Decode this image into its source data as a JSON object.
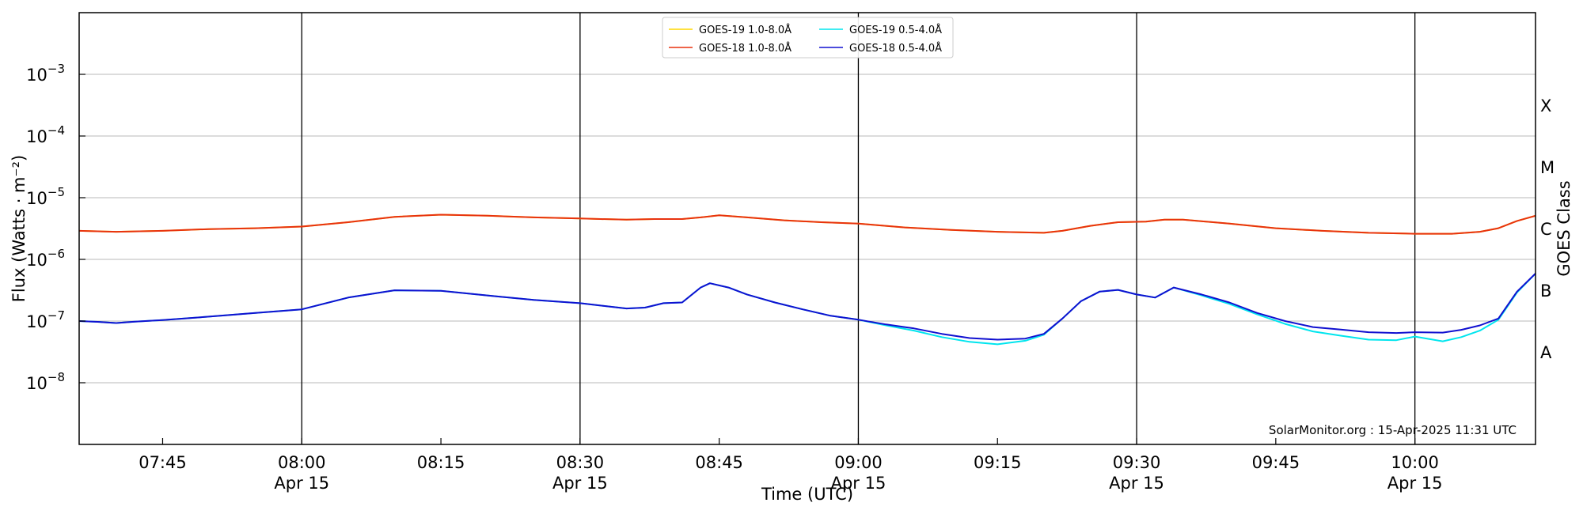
{
  "chart_data": {
    "type": "line",
    "xlabel": "Time (UTC)",
    "ylabel": "Flux (Watts · m⁻²)",
    "y2label": "GOES Class",
    "y_scale": "log",
    "ylim": [
      1e-09,
      0.01
    ],
    "xlim": [
      "07:36",
      "10:13"
    ],
    "grid": "horizontal major lines at decades",
    "legend_placement": "top-center",
    "x_ticks": [
      {
        "time": "07:45",
        "label": "07:45",
        "date": ""
      },
      {
        "time": "08:00",
        "label": "08:00",
        "date": "Apr 15"
      },
      {
        "time": "08:15",
        "label": "08:15",
        "date": ""
      },
      {
        "time": "08:30",
        "label": "08:30",
        "date": "Apr 15"
      },
      {
        "time": "08:45",
        "label": "08:45",
        "date": ""
      },
      {
        "time": "09:00",
        "label": "09:00",
        "date": "Apr 15"
      },
      {
        "time": "09:15",
        "label": "09:15",
        "date": ""
      },
      {
        "time": "09:30",
        "label": "09:30",
        "date": "Apr 15"
      },
      {
        "time": "09:45",
        "label": "09:45",
        "date": ""
      },
      {
        "time": "10:00",
        "label": "10:00",
        "date": "Apr 15"
      }
    ],
    "vertical_lines": [
      "08:00",
      "08:30",
      "09:00",
      "09:30",
      "10:00"
    ],
    "y_ticks": [
      {
        "value": 1e-08,
        "base": "10",
        "exp": "−8"
      },
      {
        "value": 1e-07,
        "base": "10",
        "exp": "−7"
      },
      {
        "value": 1e-06,
        "base": "10",
        "exp": "−6"
      },
      {
        "value": 1e-05,
        "base": "10",
        "exp": "−5"
      },
      {
        "value": 0.0001,
        "base": "10",
        "exp": "−4"
      },
      {
        "value": 0.001,
        "base": "10",
        "exp": "−3"
      }
    ],
    "goes_classes": [
      {
        "label": "A",
        "value": 3.16e-08
      },
      {
        "label": "B",
        "value": 3.16e-07
      },
      {
        "label": "C",
        "value": 3.16e-06
      },
      {
        "label": "M",
        "value": 3.16e-05
      },
      {
        "label": "X",
        "value": 0.000316
      }
    ],
    "credit": "SolarMonitor.org : 15-Apr-2025 11:31 UTC",
    "series": [
      {
        "name": "GOES-19 1.0-8.0Å",
        "color": "#ffd700",
        "x": [
          "07:36",
          "07:40",
          "07:45",
          "07:50",
          "07:55",
          "08:00",
          "08:05",
          "08:10",
          "08:15",
          "08:20",
          "08:25",
          "08:30",
          "08:35",
          "08:38",
          "08:41",
          "08:43",
          "08:45",
          "08:48",
          "08:52",
          "08:56",
          "09:00",
          "09:05",
          "09:10",
          "09:15",
          "09:20",
          "09:22",
          "09:25",
          "09:28",
          "09:31",
          "09:33",
          "09:35",
          "09:40",
          "09:45",
          "09:50",
          "09:55",
          "10:00",
          "10:04",
          "10:07",
          "10:09",
          "10:11",
          "10:13"
        ],
        "values": [
          2.9e-06,
          2.8e-06,
          2.9e-06,
          3.1e-06,
          3.2e-06,
          3.4e-06,
          4e-06,
          4.9e-06,
          5.3e-06,
          5.1e-06,
          4.8e-06,
          4.6e-06,
          4.4e-06,
          4.5e-06,
          4.5e-06,
          4.8e-06,
          5.2e-06,
          4.8e-06,
          4.3e-06,
          4e-06,
          3.8e-06,
          3.3e-06,
          3e-06,
          2.8e-06,
          2.7e-06,
          2.9e-06,
          3.5e-06,
          4e-06,
          4.1e-06,
          4.4e-06,
          4.4e-06,
          3.8e-06,
          3.2e-06,
          2.9e-06,
          2.7e-06,
          2.6e-06,
          2.6e-06,
          2.8e-06,
          3.2e-06,
          4.2e-06,
          5.1e-06
        ]
      },
      {
        "name": "GOES-18 1.0-8.0Å",
        "color": "#e8320f",
        "x": [
          "07:36",
          "07:40",
          "07:45",
          "07:50",
          "07:55",
          "08:00",
          "08:05",
          "08:10",
          "08:15",
          "08:20",
          "08:25",
          "08:30",
          "08:35",
          "08:38",
          "08:41",
          "08:43",
          "08:45",
          "08:48",
          "08:52",
          "08:56",
          "09:00",
          "09:05",
          "09:10",
          "09:15",
          "09:20",
          "09:22",
          "09:25",
          "09:28",
          "09:31",
          "09:33",
          "09:35",
          "09:40",
          "09:45",
          "09:50",
          "09:55",
          "10:00",
          "10:04",
          "10:07",
          "10:09",
          "10:11",
          "10:13"
        ],
        "values": [
          2.9e-06,
          2.8e-06,
          2.9e-06,
          3.1e-06,
          3.2e-06,
          3.4e-06,
          4e-06,
          4.9e-06,
          5.3e-06,
          5.1e-06,
          4.8e-06,
          4.6e-06,
          4.4e-06,
          4.5e-06,
          4.5e-06,
          4.8e-06,
          5.2e-06,
          4.8e-06,
          4.3e-06,
          4e-06,
          3.8e-06,
          3.3e-06,
          3e-06,
          2.8e-06,
          2.7e-06,
          2.9e-06,
          3.5e-06,
          4e-06,
          4.1e-06,
          4.4e-06,
          4.4e-06,
          3.8e-06,
          3.2e-06,
          2.9e-06,
          2.7e-06,
          2.6e-06,
          2.6e-06,
          2.8e-06,
          3.2e-06,
          4.2e-06,
          5.1e-06
        ]
      },
      {
        "name": "GOES-19 0.5-4.0Å",
        "color": "#00e5ee",
        "x": [
          "07:36",
          "07:38",
          "07:40",
          "07:42",
          "07:45",
          "07:50",
          "07:55",
          "08:00",
          "08:05",
          "08:10",
          "08:15",
          "08:20",
          "08:25",
          "08:30",
          "08:35",
          "08:37",
          "08:39",
          "08:41",
          "08:43",
          "08:44",
          "08:46",
          "08:48",
          "08:51",
          "08:54",
          "08:57",
          "09:00",
          "09:03",
          "09:06",
          "09:09",
          "09:12",
          "09:15",
          "09:18",
          "09:20",
          "09:22",
          "09:24",
          "09:26",
          "09:28",
          "09:30",
          "09:32",
          "09:34",
          "09:37",
          "09:40",
          "09:43",
          "09:46",
          "09:49",
          "09:52",
          "09:55",
          "09:58",
          "10:00",
          "10:03",
          "10:05",
          "10:07",
          "10:09",
          "10:11",
          "10:13"
        ],
        "values": [
          1e-07,
          9.7e-08,
          9.3e-08,
          9.8e-08,
          1.04e-07,
          1.18e-07,
          1.35e-07,
          1.55e-07,
          2.4e-07,
          3.15e-07,
          3.1e-07,
          2.6e-07,
          2.2e-07,
          1.95e-07,
          1.6e-07,
          1.65e-07,
          1.95e-07,
          2e-07,
          3.5e-07,
          4.1e-07,
          3.5e-07,
          2.7e-07,
          2e-07,
          1.55e-07,
          1.22e-07,
          1.05e-07,
          8.5e-08,
          7e-08,
          5.5e-08,
          4.6e-08,
          4.2e-08,
          4.8e-08,
          6e-08,
          1.1e-07,
          2.1e-07,
          3e-07,
          3.2e-07,
          2.7e-07,
          2.4e-07,
          3.5e-07,
          2.6e-07,
          1.9e-07,
          1.28e-07,
          9e-08,
          6.8e-08,
          5.8e-08,
          5e-08,
          4.9e-08,
          5.6e-08,
          4.7e-08,
          5.5e-08,
          7e-08,
          1.05e-07,
          2.9e-07,
          5.9e-07
        ]
      },
      {
        "name": "GOES-18 0.5-4.0Å",
        "color": "#1010d0",
        "x": [
          "07:36",
          "07:38",
          "07:40",
          "07:42",
          "07:45",
          "07:50",
          "07:55",
          "08:00",
          "08:05",
          "08:10",
          "08:15",
          "08:20",
          "08:25",
          "08:30",
          "08:35",
          "08:37",
          "08:39",
          "08:41",
          "08:43",
          "08:44",
          "08:46",
          "08:48",
          "08:51",
          "08:54",
          "08:57",
          "09:00",
          "09:03",
          "09:06",
          "09:09",
          "09:12",
          "09:15",
          "09:18",
          "09:20",
          "09:22",
          "09:24",
          "09:26",
          "09:28",
          "09:30",
          "09:32",
          "09:34",
          "09:37",
          "09:40",
          "09:43",
          "09:46",
          "09:49",
          "09:52",
          "09:55",
          "09:58",
          "10:00",
          "10:03",
          "10:05",
          "10:07",
          "10:09",
          "10:11",
          "10:13"
        ],
        "values": [
          1e-07,
          9.7e-08,
          9.3e-08,
          9.8e-08,
          1.04e-07,
          1.18e-07,
          1.35e-07,
          1.55e-07,
          2.4e-07,
          3.15e-07,
          3.1e-07,
          2.6e-07,
          2.2e-07,
          1.95e-07,
          1.6e-07,
          1.65e-07,
          1.95e-07,
          2e-07,
          3.5e-07,
          4.1e-07,
          3.5e-07,
          2.7e-07,
          2e-07,
          1.55e-07,
          1.22e-07,
          1.05e-07,
          8.8e-08,
          7.6e-08,
          6.2e-08,
          5.3e-08,
          5e-08,
          5.2e-08,
          6.2e-08,
          1.1e-07,
          2.1e-07,
          3e-07,
          3.2e-07,
          2.7e-07,
          2.4e-07,
          3.5e-07,
          2.7e-07,
          2e-07,
          1.35e-07,
          1e-07,
          8e-08,
          7.3e-08,
          6.6e-08,
          6.4e-08,
          6.6e-08,
          6.5e-08,
          7.2e-08,
          8.5e-08,
          1.1e-07,
          3e-07,
          5.9e-07
        ]
      }
    ]
  }
}
